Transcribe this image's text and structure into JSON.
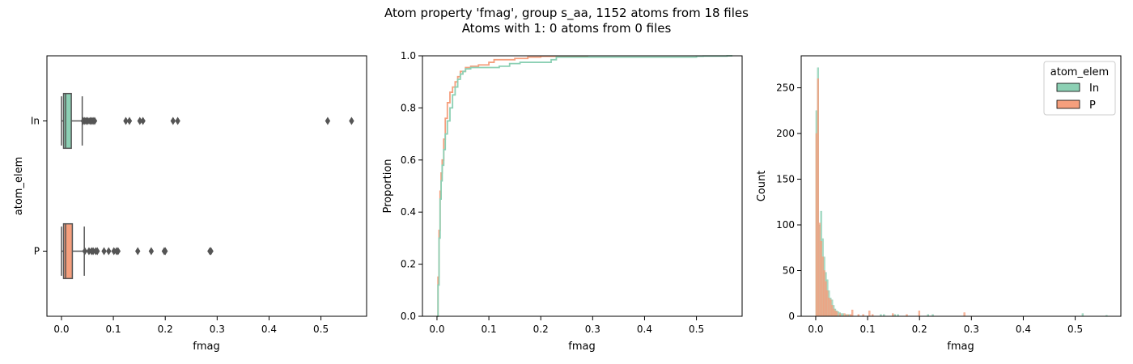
{
  "figure": {
    "title_line1": "Atom property 'fmag', group s_aa, 1152 atoms from 18 files",
    "title_line2": "Atoms with 1: 0 atoms from 0 files"
  },
  "colors": {
    "In": "#8cd0b4",
    "P": "#f59f7d",
    "box_edge": "#555555",
    "outlier": "#555555"
  },
  "chart_data": [
    {
      "type": "boxplot",
      "orientation": "horizontal",
      "xlabel": "fmag",
      "ylabel": "atom_elem",
      "xlim": [
        -0.028,
        0.588
      ],
      "xticks": [
        "0.0",
        "0.1",
        "0.2",
        "0.3",
        "0.4",
        "0.5"
      ],
      "categories": [
        "In",
        "P"
      ],
      "series": [
        {
          "name": "In",
          "whisker_low": 0.0,
          "q1": 0.004,
          "median": 0.008,
          "q3": 0.019,
          "whisker_high": 0.04,
          "outliers": [
            0.042,
            0.045,
            0.048,
            0.051,
            0.055,
            0.058,
            0.061,
            0.064,
            0.124,
            0.131,
            0.151,
            0.157,
            0.215,
            0.224,
            0.513,
            0.559
          ]
        },
        {
          "name": "P",
          "whisker_low": 0.0,
          "q1": 0.004,
          "median": 0.008,
          "q3": 0.021,
          "whisker_high": 0.044,
          "outliers": [
            0.045,
            0.053,
            0.058,
            0.061,
            0.066,
            0.069,
            0.082,
            0.091,
            0.101,
            0.106,
            0.109,
            0.147,
            0.173,
            0.198,
            0.2,
            0.286,
            0.288
          ]
        }
      ]
    },
    {
      "type": "line",
      "subtype": "ecdf",
      "xlabel": "fmag",
      "ylabel": "Proportion",
      "xlim": [
        -0.028,
        0.588
      ],
      "ylim": [
        0.0,
        1.0
      ],
      "xticks": [
        "0.0",
        "0.1",
        "0.2",
        "0.3",
        "0.4",
        "0.5"
      ],
      "yticks": [
        "0.0",
        "0.2",
        "0.4",
        "0.6",
        "0.8",
        "1.0"
      ],
      "series": [
        {
          "name": "In",
          "points": [
            [
              0.0,
              0.0
            ],
            [
              0.002,
              0.12
            ],
            [
              0.004,
              0.3
            ],
            [
              0.006,
              0.45
            ],
            [
              0.008,
              0.52
            ],
            [
              0.01,
              0.58
            ],
            [
              0.013,
              0.64
            ],
            [
              0.016,
              0.7
            ],
            [
              0.02,
              0.75
            ],
            [
              0.025,
              0.8
            ],
            [
              0.03,
              0.85
            ],
            [
              0.035,
              0.88
            ],
            [
              0.04,
              0.91
            ],
            [
              0.045,
              0.93
            ],
            [
              0.05,
              0.94
            ],
            [
              0.055,
              0.95
            ],
            [
              0.065,
              0.955
            ],
            [
              0.12,
              0.96
            ],
            [
              0.14,
              0.97
            ],
            [
              0.16,
              0.975
            ],
            [
              0.22,
              0.985
            ],
            [
              0.23,
              0.995
            ],
            [
              0.5,
              0.998
            ],
            [
              0.513,
              0.999
            ],
            [
              0.559,
              1.0
            ]
          ]
        },
        {
          "name": "P",
          "points": [
            [
              0.0,
              0.0
            ],
            [
              0.002,
              0.15
            ],
            [
              0.004,
              0.33
            ],
            [
              0.006,
              0.48
            ],
            [
              0.008,
              0.55
            ],
            [
              0.01,
              0.6
            ],
            [
              0.013,
              0.68
            ],
            [
              0.016,
              0.76
            ],
            [
              0.02,
              0.82
            ],
            [
              0.025,
              0.86
            ],
            [
              0.03,
              0.88
            ],
            [
              0.035,
              0.9
            ],
            [
              0.04,
              0.92
            ],
            [
              0.045,
              0.94
            ],
            [
              0.055,
              0.955
            ],
            [
              0.065,
              0.96
            ],
            [
              0.08,
              0.965
            ],
            [
              0.1,
              0.975
            ],
            [
              0.11,
              0.985
            ],
            [
              0.15,
              0.99
            ],
            [
              0.175,
              0.995
            ],
            [
              0.2,
              0.998
            ],
            [
              0.29,
              1.0
            ]
          ]
        }
      ]
    },
    {
      "type": "bar",
      "subtype": "histogram",
      "xlabel": "fmag",
      "ylabel": "Count",
      "xlim": [
        -0.028,
        0.588
      ],
      "ylim": [
        0,
        285
      ],
      "xticks": [
        "0.0",
        "0.1",
        "0.2",
        "0.3",
        "0.4",
        "0.5"
      ],
      "yticks": [
        "0",
        "50",
        "100",
        "150",
        "200",
        "250"
      ],
      "bin_width": 0.003,
      "legend_title": "atom_elem",
      "legend_position": "top-right",
      "series": [
        {
          "name": "In",
          "bins": [
            [
              0.0,
              225
            ],
            [
              0.003,
              272
            ],
            [
              0.006,
              100
            ],
            [
              0.009,
              115
            ],
            [
              0.012,
              85
            ],
            [
              0.015,
              65
            ],
            [
              0.018,
              48
            ],
            [
              0.021,
              40
            ],
            [
              0.024,
              28
            ],
            [
              0.027,
              20
            ],
            [
              0.03,
              18
            ],
            [
              0.033,
              12
            ],
            [
              0.036,
              8
            ],
            [
              0.039,
              6
            ],
            [
              0.042,
              5
            ],
            [
              0.045,
              4
            ],
            [
              0.048,
              3
            ],
            [
              0.051,
              3
            ],
            [
              0.057,
              2
            ],
            [
              0.063,
              2
            ],
            [
              0.124,
              2
            ],
            [
              0.13,
              2
            ],
            [
              0.151,
              2
            ],
            [
              0.157,
              2
            ],
            [
              0.215,
              2
            ],
            [
              0.224,
              2
            ],
            [
              0.513,
              3
            ],
            [
              0.559,
              1
            ]
          ]
        },
        {
          "name": "P",
          "bins": [
            [
              0.0,
              200
            ],
            [
              0.003,
              260
            ],
            [
              0.006,
              102
            ],
            [
              0.009,
              82
            ],
            [
              0.012,
              65
            ],
            [
              0.015,
              50
            ],
            [
              0.018,
              38
            ],
            [
              0.021,
              28
            ],
            [
              0.024,
              20
            ],
            [
              0.027,
              18
            ],
            [
              0.03,
              12
            ],
            [
              0.033,
              8
            ],
            [
              0.036,
              6
            ],
            [
              0.039,
              5
            ],
            [
              0.045,
              3
            ],
            [
              0.054,
              3
            ],
            [
              0.06,
              2
            ],
            [
              0.066,
              2
            ],
            [
              0.069,
              7
            ],
            [
              0.081,
              2
            ],
            [
              0.09,
              2
            ],
            [
              0.102,
              6
            ],
            [
              0.108,
              2
            ],
            [
              0.147,
              3
            ],
            [
              0.174,
              2
            ],
            [
              0.198,
              6
            ],
            [
              0.285,
              4
            ]
          ]
        }
      ]
    }
  ]
}
